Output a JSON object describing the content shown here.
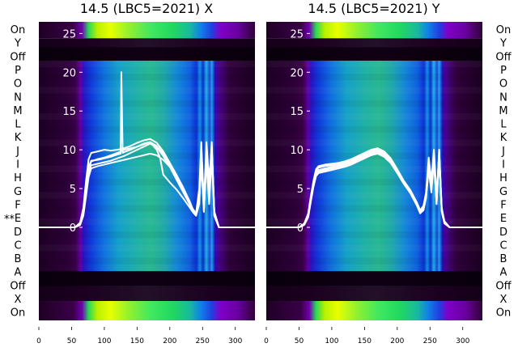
{
  "panels": [
    {
      "title": "14.5 (LBC5=2021) X",
      "row_labels": [
        "On",
        "Y",
        "Off",
        "P",
        "O",
        "N",
        "M",
        "L",
        "K",
        "J",
        "I",
        "H",
        "G",
        "F",
        "E",
        "D",
        "C",
        "B",
        "A",
        "Off",
        "X",
        "On"
      ],
      "row_marker": "**"
    },
    {
      "title": "14.5 (LBC5=2021) Y",
      "row_labels": [
        "On",
        "Y",
        "Off",
        "P",
        "O",
        "N",
        "M",
        "L",
        "K",
        "J",
        "I",
        "H",
        "G",
        "F",
        "E",
        "D",
        "C",
        "B",
        "A",
        "Off",
        "X",
        "On"
      ]
    }
  ],
  "chart_data": [
    {
      "type": "line",
      "title": "14.5 (LBC5=2021) X",
      "x_ticks": [
        0,
        50,
        100,
        150,
        200,
        250,
        300
      ],
      "y_ticks": [
        0,
        5,
        10,
        15,
        20,
        25
      ],
      "xlim": [
        0,
        330
      ],
      "ylim": [
        -12,
        26.5
      ],
      "background": "heatmap",
      "series": [
        {
          "x": [
            0,
            55,
            63,
            68,
            72,
            76,
            80,
            90,
            100,
            110,
            120,
            130,
            140,
            150,
            160,
            170,
            180,
            190,
            200,
            210,
            220,
            230,
            235,
            240,
            245,
            248,
            252,
            256,
            260,
            264,
            268,
            275,
            290,
            330
          ],
          "y": [
            0,
            0,
            0.5,
            2,
            5,
            7.5,
            8.5,
            8.8,
            9,
            9.3,
            9.6,
            10,
            10.2,
            10.4,
            10.7,
            11,
            10.5,
            9.5,
            8,
            6.5,
            4.8,
            3.2,
            2.2,
            1.6,
            4,
            10,
            3,
            10,
            5,
            11,
            2,
            0,
            0,
            0
          ]
        },
        {
          "x": [
            0,
            55,
            63,
            68,
            72,
            76,
            80,
            90,
            100,
            110,
            120,
            130,
            140,
            150,
            160,
            170,
            180,
            190,
            200,
            210,
            220,
            230,
            235,
            240,
            245,
            248,
            252,
            256,
            260,
            264,
            268,
            275,
            290,
            330
          ],
          "y": [
            0,
            0,
            0.4,
            1.8,
            4.5,
            7,
            8,
            8.2,
            8.4,
            8.6,
            8.9,
            9.2,
            9.6,
            10,
            10.4,
            10.8,
            10.3,
            9.2,
            7.8,
            6.2,
            4.6,
            3,
            2,
            1.5,
            3,
            9,
            2,
            9,
            4,
            10,
            1.5,
            0,
            0,
            0
          ]
        },
        {
          "x": [
            0,
            55,
            63,
            68,
            72,
            76,
            80,
            90,
            100,
            110,
            120,
            130,
            140,
            150,
            160,
            170,
            180,
            190,
            200,
            210,
            220,
            230,
            235,
            240,
            245,
            248,
            252,
            256,
            260,
            264,
            268,
            275,
            290,
            330
          ],
          "y": [
            0,
            0,
            0.6,
            2.5,
            6,
            8.8,
            9.6,
            9.8,
            10,
            9.9,
            10,
            10.2,
            10.5,
            10.9,
            11.2,
            11.4,
            10.9,
            9.8,
            8.3,
            6.8,
            5,
            3.4,
            2.4,
            1.8,
            5,
            11,
            3,
            11,
            6,
            10.5,
            2,
            0,
            0,
            0
          ]
        },
        {
          "x": [
            0,
            55,
            63,
            68,
            72,
            76,
            80,
            90,
            100,
            110,
            120,
            130,
            140,
            150,
            160,
            170,
            180,
            190,
            200,
            210,
            220,
            230,
            235,
            240,
            245,
            248,
            252,
            256,
            260,
            264,
            268,
            275,
            290,
            330
          ],
          "y": [
            0,
            0,
            0.3,
            1.5,
            4,
            6.5,
            7.6,
            7.9,
            8.1,
            8.3,
            8.5,
            8.7,
            8.9,
            9.1,
            9.3,
            9.5,
            9.3,
            8.7,
            7.8,
            6.8,
            5.2,
            3.4,
            2.2,
            1.6,
            3.5,
            8,
            2,
            8.5,
            3,
            9,
            1.5,
            0,
            0,
            0
          ]
        },
        {
          "x": [
            0,
            55,
            63,
            68,
            72,
            76,
            80,
            90,
            100,
            110,
            120,
            125,
            126,
            128,
            130,
            140,
            150,
            160,
            170,
            180,
            185,
            190,
            200,
            210,
            220,
            230,
            235,
            240,
            245,
            248,
            252,
            256,
            260,
            264,
            268,
            275,
            290,
            330
          ],
          "y": [
            0,
            0,
            0.5,
            2.2,
            5.2,
            7.8,
            8.6,
            8.7,
            8.9,
            9.1,
            9.4,
            9.5,
            20,
            9.6,
            9.7,
            10,
            10.4,
            10.8,
            11,
            10,
            9,
            6.8,
            5.8,
            4.9,
            3.8,
            2.6,
            2,
            1.5,
            4,
            10.5,
            2.5,
            10,
            5,
            10.5,
            2,
            0,
            0,
            0
          ]
        }
      ]
    },
    {
      "type": "line",
      "title": "14.5 (LBC5=2021) Y",
      "x_ticks": [
        0,
        50,
        100,
        150,
        200,
        250,
        300
      ],
      "y_ticks": [
        0,
        5,
        10,
        15,
        20,
        25
      ],
      "xlim": [
        0,
        330
      ],
      "ylim": [
        -12,
        26.5
      ],
      "background": "heatmap",
      "series": [
        {
          "x": [
            0,
            50,
            58,
            64,
            68,
            72,
            76,
            80,
            90,
            100,
            110,
            120,
            130,
            140,
            150,
            160,
            170,
            180,
            190,
            200,
            210,
            220,
            230,
            235,
            240,
            244,
            248,
            252,
            256,
            260,
            264,
            268,
            272,
            280,
            300,
            330
          ],
          "y": [
            0,
            0,
            0.4,
            1.5,
            3.6,
            5.6,
            7,
            7.4,
            7.6,
            7.8,
            8,
            8.2,
            8.5,
            8.9,
            9.3,
            9.7,
            9.9,
            9.5,
            8.6,
            7.2,
            5.8,
            4.6,
            3,
            2,
            2.5,
            4,
            8,
            5,
            9,
            3,
            10,
            2,
            0.6,
            0,
            0,
            0
          ]
        },
        {
          "x": [
            0,
            50,
            58,
            64,
            68,
            72,
            76,
            80,
            90,
            100,
            110,
            120,
            130,
            140,
            150,
            160,
            170,
            180,
            190,
            200,
            210,
            220,
            230,
            235,
            240,
            244,
            248,
            252,
            256,
            260,
            264,
            268,
            272,
            280,
            300,
            330
          ],
          "y": [
            0,
            0,
            0.5,
            1.8,
            4,
            6,
            7.5,
            7.9,
            8.1,
            8.2,
            8.3,
            8.5,
            8.8,
            9.2,
            9.6,
            10,
            10.2,
            9.8,
            8.9,
            7.5,
            6,
            4.8,
            3.2,
            2.2,
            2.8,
            4.5,
            9,
            6,
            10,
            4,
            9.5,
            2.5,
            0.8,
            0,
            0,
            0
          ]
        },
        {
          "x": [
            0,
            50,
            58,
            64,
            68,
            72,
            76,
            80,
            90,
            100,
            110,
            120,
            130,
            140,
            150,
            160,
            170,
            180,
            190,
            200,
            210,
            220,
            230,
            235,
            240,
            244,
            248,
            252,
            256,
            260,
            264,
            268,
            272,
            280,
            300,
            330
          ],
          "y": [
            0,
            0,
            0.3,
            1.3,
            3.3,
            5.2,
            6.6,
            7,
            7.2,
            7.4,
            7.6,
            7.8,
            8.1,
            8.5,
            8.9,
            9.3,
            9.5,
            9.1,
            8.3,
            7,
            5.6,
            4.4,
            2.8,
            1.8,
            2.2,
            3.8,
            7.5,
            4.5,
            8.5,
            3,
            9,
            2,
            0.5,
            0,
            0,
            0
          ]
        },
        {
          "x": [
            0,
            50,
            58,
            64,
            68,
            72,
            76,
            80,
            90,
            100,
            110,
            120,
            130,
            140,
            150,
            160,
            170,
            180,
            190,
            200,
            210,
            220,
            230,
            235,
            240,
            244,
            248,
            252,
            256,
            260,
            264,
            268,
            272,
            280,
            300,
            330
          ],
          "y": [
            0,
            0,
            0.45,
            1.6,
            3.8,
            5.8,
            7.3,
            7.7,
            7.9,
            8,
            8.2,
            8.4,
            8.7,
            9.1,
            9.5,
            9.8,
            10.1,
            9.7,
            8.7,
            7.3,
            5.9,
            4.7,
            3.1,
            2.1,
            2.6,
            4.2,
            8.5,
            5.5,
            9.5,
            3.5,
            10,
            2.2,
            0.7,
            0,
            0,
            0
          ]
        },
        {
          "x": [
            0,
            50,
            58,
            64,
            68,
            72,
            76,
            80,
            90,
            100,
            110,
            120,
            130,
            140,
            150,
            160,
            170,
            180,
            190,
            200,
            210,
            220,
            230,
            235,
            240,
            244,
            248,
            252,
            256,
            260,
            264,
            268,
            272,
            280,
            300,
            330
          ],
          "y": [
            0,
            0,
            0.35,
            1.4,
            3.5,
            5.4,
            6.8,
            7.2,
            7.4,
            7.6,
            7.8,
            8,
            8.3,
            8.7,
            9.1,
            9.5,
            9.7,
            9.3,
            8.4,
            7.1,
            5.7,
            4.5,
            2.9,
            1.9,
            2.4,
            3.9,
            7.8,
            4.8,
            8.8,
            3.2,
            9.3,
            2.1,
            0.6,
            0,
            0,
            0
          ]
        }
      ]
    }
  ]
}
